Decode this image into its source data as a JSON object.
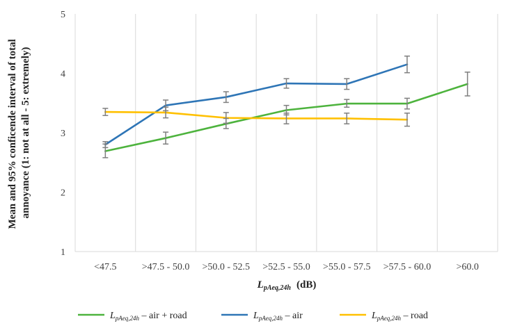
{
  "chart_data": {
    "type": "line",
    "categories": [
      "<47.5",
      ">47.5 - 50.0",
      ">50.0 - 52.5",
      ">52.5 - 55.0",
      ">55.0 - 57.5",
      ">57.5 - 60.0",
      ">60.0"
    ],
    "series": [
      {
        "name_main": "L",
        "name_sub": "pAeq,24h",
        "name_rest": " – air + road",
        "color": "#4db33d",
        "values": [
          2.69,
          2.91,
          3.15,
          3.38,
          3.49,
          3.49,
          3.82
        ],
        "err_low": [
          2.58,
          2.81,
          3.07,
          3.3,
          3.43,
          3.4,
          3.62
        ],
        "err_high": [
          2.81,
          3.01,
          3.24,
          3.46,
          3.56,
          3.58,
          4.02
        ]
      },
      {
        "name_main": "L",
        "name_sub": "pAeq,24h",
        "name_rest": " – air",
        "color": "#2e75b6",
        "values": [
          2.8,
          3.46,
          3.6,
          3.83,
          3.82,
          4.15,
          null
        ],
        "err_low": [
          2.75,
          3.37,
          3.51,
          3.75,
          3.73,
          4.01,
          null
        ],
        "err_high": [
          2.85,
          3.55,
          3.69,
          3.91,
          3.91,
          4.29,
          null
        ]
      },
      {
        "name_main": "L",
        "name_sub": "pAeq,24h",
        "name_rest": " – road",
        "color": "#ffc000",
        "values": [
          3.35,
          3.34,
          3.25,
          3.24,
          3.24,
          3.22,
          null
        ],
        "err_low": [
          3.29,
          3.25,
          3.16,
          3.15,
          3.15,
          3.11,
          null
        ],
        "err_high": [
          3.41,
          3.43,
          3.34,
          3.33,
          3.33,
          3.33,
          null
        ]
      }
    ],
    "yticks": [
      1,
      2,
      3,
      4,
      5
    ],
    "ylim": [
      1,
      5
    ],
    "xlabel_main": "L",
    "xlabel_sub": "pAeq,24h",
    "xlabel_unit": "(dB)",
    "ylabel_line1": "Mean and 95% conficende interval of total",
    "ylabel_line2": "annoyance (1: not at all - 5: extremely)",
    "grid": "vertical",
    "legend_position": "bottom"
  }
}
